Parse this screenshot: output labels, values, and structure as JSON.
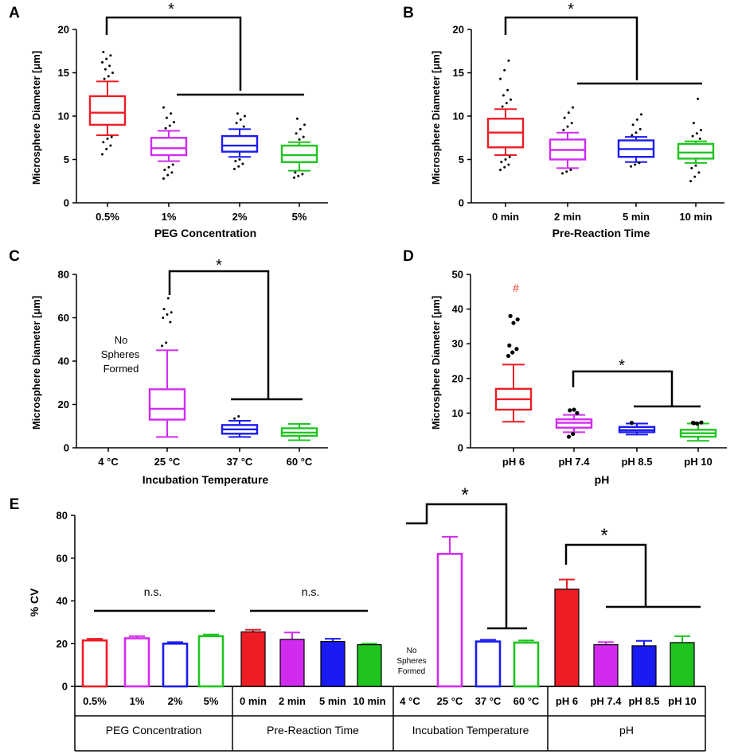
{
  "colors": {
    "red": "#ee1c25",
    "magenta": "#d12bf0",
    "blue": "#1a1af2",
    "green": "#1fc41f",
    "black": "#000000",
    "hash": "#f03a3a"
  },
  "sig": {
    "star": "*",
    "ns": "n.s.",
    "hash": "#"
  },
  "no_spheres": {
    "line1": "No",
    "line2": "Spheres",
    "line3": "Formed"
  },
  "chart_data": [
    {
      "panel": "A",
      "type": "box",
      "title": "",
      "xlabel": "PEG Concentration",
      "ylabel": "Microsphere Diameter [μm]",
      "ylim": [
        0,
        20
      ],
      "yticks": [
        0,
        5,
        10,
        15,
        20
      ],
      "categories": [
        "0.5%",
        "1%",
        "2%",
        "5%"
      ],
      "series": [
        {
          "name": "0.5%",
          "color": "red",
          "whisker_low": 7.8,
          "q1": 9.0,
          "median": 10.4,
          "q3": 12.3,
          "whisker_high": 14.0,
          "outliers": [
            5.6,
            6.2,
            6.6,
            7.0,
            7.4,
            7.6,
            14.3,
            14.6,
            15.0,
            15.4,
            15.8,
            16.2,
            16.6,
            17.0,
            17.4
          ]
        },
        {
          "name": "1%",
          "color": "magenta",
          "whisker_low": 4.8,
          "q1": 5.5,
          "median": 6.3,
          "q3": 7.5,
          "whisker_high": 8.3,
          "outliers": [
            2.8,
            3.2,
            3.5,
            3.8,
            4.1,
            4.4,
            8.6,
            8.9,
            9.3,
            9.8,
            10.3,
            11.0
          ]
        },
        {
          "name": "2%",
          "color": "blue",
          "whisker_low": 5.3,
          "q1": 5.9,
          "median": 6.6,
          "q3": 7.7,
          "whisker_high": 8.5,
          "outliers": [
            3.9,
            4.2,
            4.5,
            4.8,
            5.0,
            8.8,
            9.2,
            9.6,
            10.0,
            10.3
          ]
        },
        {
          "name": "5%",
          "color": "green",
          "whisker_low": 3.7,
          "q1": 4.7,
          "median": 5.5,
          "q3": 6.6,
          "whisker_high": 7.0,
          "outliers": [
            2.9,
            3.1,
            3.3,
            3.5,
            7.3,
            7.6,
            8.0,
            8.5,
            9.0,
            9.7
          ]
        }
      ],
      "annotations": [
        {
          "label": "*",
          "from": "0.5%",
          "to": "1%–5%"
        }
      ]
    },
    {
      "panel": "B",
      "type": "box",
      "title": "",
      "xlabel": "Pre-Reaction Time",
      "ylabel": "Microsphere Diameter [μm]",
      "ylim": [
        0,
        20
      ],
      "yticks": [
        0,
        5,
        10,
        15,
        20
      ],
      "categories": [
        "0 min",
        "2 min",
        "5 min",
        "10 min"
      ],
      "series": [
        {
          "name": "0 min",
          "color": "red",
          "whisker_low": 5.5,
          "q1": 6.4,
          "median": 8.1,
          "q3": 9.7,
          "whisker_high": 10.8,
          "outliers": [
            3.8,
            4.1,
            4.4,
            4.7,
            5.0,
            5.3,
            11.1,
            11.5,
            11.9,
            12.4,
            13.0,
            14.3,
            15.3,
            16.4
          ]
        },
        {
          "name": "2 min",
          "color": "magenta",
          "whisker_low": 4.0,
          "q1": 5.0,
          "median": 6.1,
          "q3": 7.3,
          "whisker_high": 8.1,
          "outliers": [
            3.4,
            3.6,
            3.8,
            8.4,
            8.8,
            9.2,
            9.8,
            10.4,
            11.0
          ]
        },
        {
          "name": "5 min",
          "color": "blue",
          "whisker_low": 4.7,
          "q1": 5.3,
          "median": 6.2,
          "q3": 7.2,
          "whisker_high": 7.6,
          "outliers": [
            4.2,
            4.4,
            4.6,
            7.8,
            8.1,
            8.5,
            9.0,
            9.6,
            10.2
          ]
        },
        {
          "name": "10 min",
          "color": "green",
          "whisker_low": 4.6,
          "q1": 5.1,
          "median": 5.8,
          "q3": 6.8,
          "whisker_high": 7.1,
          "outliers": [
            2.5,
            3.0,
            3.5,
            4.0,
            4.3,
            7.4,
            7.7,
            8.0,
            8.4,
            9.2,
            12.0
          ]
        }
      ],
      "annotations": [
        {
          "label": "*",
          "from": "0 min",
          "to": "2 min–10 min"
        }
      ]
    },
    {
      "panel": "C",
      "type": "box",
      "title": "",
      "xlabel": "Incubation Temperature",
      "ylabel": "Microsphere Diameter [μm]",
      "ylim": [
        0,
        80
      ],
      "yticks": [
        0,
        20,
        40,
        60,
        80
      ],
      "categories": [
        "4 °C",
        "25 °C",
        "37 °C",
        "60 °C"
      ],
      "series": [
        {
          "name": "4 °C",
          "color": "black",
          "empty": true
        },
        {
          "name": "25 °C",
          "color": "magenta",
          "whisker_low": 5,
          "q1": 13,
          "median": 18,
          "q3": 27,
          "whisker_high": 45,
          "outliers": [
            47,
            48.5,
            58,
            60,
            61.5,
            62.5,
            64,
            69
          ]
        },
        {
          "name": "37 °C",
          "color": "blue",
          "whisker_low": 5,
          "q1": 6.5,
          "median": 8.5,
          "q3": 10.5,
          "whisker_high": 12.5,
          "outliers": [
            13.5,
            14.5
          ]
        },
        {
          "name": "60 °C",
          "color": "green",
          "whisker_low": 3.5,
          "q1": 5.5,
          "median": 7,
          "q3": 9,
          "whisker_high": 11,
          "outliers": []
        }
      ],
      "annotations": [
        {
          "label": "*",
          "from": "25 °C",
          "to": "37 °C–60 °C"
        }
      ]
    },
    {
      "panel": "D",
      "type": "box",
      "title": "",
      "xlabel": "pH",
      "ylabel": "Microsphere Diameter [μm]",
      "ylim": [
        0,
        50
      ],
      "yticks": [
        0,
        10,
        20,
        30,
        40,
        50
      ],
      "categories": [
        "pH 6",
        "pH 7.4",
        "pH 8.5",
        "pH 10"
      ],
      "series": [
        {
          "name": "pH 6",
          "color": "red",
          "whisker_low": 7.5,
          "q1": 11,
          "median": 14,
          "q3": 17,
          "whisker_high": 24,
          "outliers": [
            26.5,
            27.5,
            28.5,
            29.5,
            36,
            37,
            38
          ]
        },
        {
          "name": "pH 7.4",
          "color": "magenta",
          "whisker_low": 4.5,
          "q1": 5.8,
          "median": 7.2,
          "q3": 8.2,
          "whisker_high": 9.5,
          "outliers": [
            3.2,
            4,
            10,
            10.8,
            11
          ]
        },
        {
          "name": "pH 8.5",
          "color": "blue",
          "whisker_low": 3.8,
          "q1": 4.5,
          "median": 5.1,
          "q3": 6.0,
          "whisker_high": 7.0,
          "outliers": [
            7.2
          ]
        },
        {
          "name": "pH 10",
          "color": "green",
          "whisker_low": 2,
          "q1": 3.2,
          "median": 4.2,
          "q3": 5.2,
          "whisker_high": 7.0,
          "outliers": [
            7.2,
            7.0,
            7.3,
            7.1
          ]
        }
      ],
      "annotations": [
        {
          "label": "#",
          "on": "pH 6"
        },
        {
          "label": "*",
          "from": "pH 7.4",
          "to": "pH 8.5–pH 10"
        }
      ]
    },
    {
      "panel": "E",
      "type": "bar",
      "title": "",
      "xlabel": "",
      "ylabel": "% CV",
      "ylim": [
        0,
        80
      ],
      "yticks": [
        0,
        20,
        40,
        60,
        80
      ],
      "categories": [
        "0.5%",
        "1%",
        "2%",
        "5%",
        "0 min",
        "2 min",
        "5 min",
        "10 min",
        "4 °C",
        "25 °C",
        "37 °C",
        "60 °C",
        "pH 6",
        "pH 7.4",
        "pH 8.5",
        "pH 10"
      ],
      "groups": [
        "PEG Concentration",
        "Pre-Reaction Time",
        "Incubation Temperature",
        "pH"
      ],
      "values": [
        21.5,
        22.5,
        20,
        23.5,
        25.5,
        22,
        21,
        19.5,
        0,
        62,
        21,
        20.5,
        45.5,
        19.5,
        19,
        20.5
      ],
      "errors": [
        0.8,
        1.0,
        0.7,
        0.8,
        1.0,
        3.2,
        1.3,
        0.5,
        0,
        8.0,
        0.8,
        1.0,
        4.5,
        1.2,
        2.3,
        3.0
      ],
      "fill": [
        false,
        false,
        false,
        false,
        true,
        true,
        true,
        true,
        false,
        false,
        false,
        false,
        true,
        true,
        true,
        true
      ],
      "bar_colors": [
        "red",
        "magenta",
        "blue",
        "green",
        "red",
        "magenta",
        "blue",
        "green",
        "black",
        "magenta",
        "blue",
        "green",
        "red",
        "magenta",
        "blue",
        "green"
      ],
      "annotations": [
        {
          "label": "n.s.",
          "over": "PEG Concentration"
        },
        {
          "label": "n.s.",
          "over": "Pre-Reaction Time"
        },
        {
          "label": "*",
          "from": "4 °C",
          "to": "37 °C–60 °C"
        },
        {
          "label": "*",
          "from": "pH 6",
          "to": "pH 7.4–pH 10"
        }
      ]
    }
  ]
}
